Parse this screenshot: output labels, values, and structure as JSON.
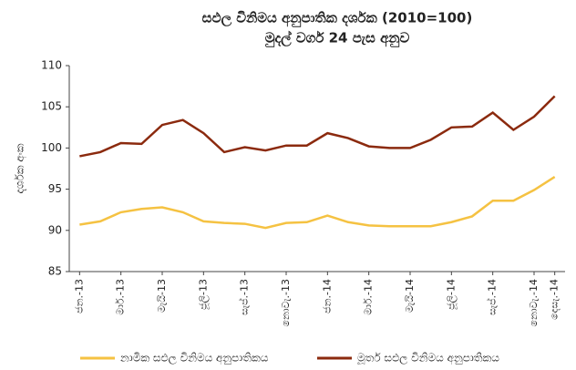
{
  "chart_data": {
    "type": "line",
    "title": "සඵල විනිමය අනුපාතික දර්ශක (2010=100)",
    "subtitle": "මුදල් වර්ග 24 පැස අනුව",
    "y_label": "දර්ශක අංක",
    "categories": [
      "ජන.-13",
      null,
      "මාර්.-13",
      null,
      "මැයි-13",
      null,
      "ජූලි-13",
      null,
      "සැප්.-13",
      null,
      "නොවැ.-13",
      null,
      "ජන.-14",
      null,
      "මාර්.-14",
      null,
      "මැයි-14",
      null,
      "ජූලි-14",
      null,
      "සැප්.-14",
      null,
      "නොවැ.-14",
      "දෙසැ.-14"
    ],
    "series": [
      {
        "name": "නාමික සඵල විනිමය අනුපාතිකය",
        "color": "#f5c242",
        "values": [
          90.7,
          91.1,
          92.2,
          92.6,
          92.8,
          92.2,
          91.1,
          90.9,
          90.8,
          90.3,
          90.9,
          91.0,
          91.8,
          91.0,
          90.6,
          90.5,
          90.5,
          90.5,
          91.0,
          91.7,
          93.6,
          93.6,
          94.9,
          96.5
        ]
      },
      {
        "name": "මූර්ත සඵල විනිමය අනුපාතිකය",
        "color": "#8b2a0e",
        "values": [
          99.0,
          99.5,
          100.6,
          100.5,
          102.8,
          103.4,
          101.8,
          99.5,
          100.1,
          99.7,
          100.3,
          100.3,
          101.8,
          101.2,
          100.2,
          100.0,
          100.0,
          101.0,
          102.5,
          102.6,
          104.3,
          102.2,
          103.8,
          106.3
        ]
      }
    ],
    "ylim": [
      85,
      110
    ],
    "yticks": [
      85,
      90,
      95,
      100,
      105,
      110
    ],
    "legend": "bottom"
  }
}
